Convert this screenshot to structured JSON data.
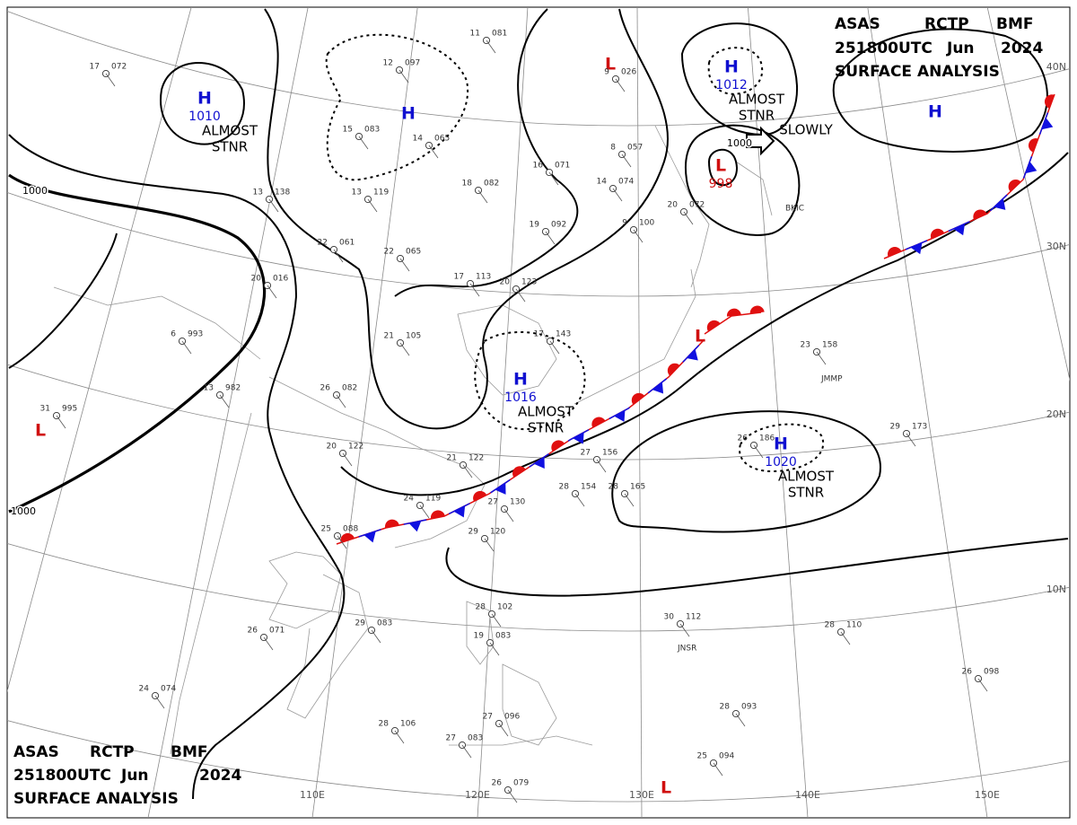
{
  "header": {
    "line1": [
      "ASAS",
      "RCTP",
      "BMF"
    ],
    "line2": [
      "251800UTC",
      "Jun",
      "2024"
    ],
    "line3": "SURFACE ANALYSIS"
  },
  "footer": {
    "line1": [
      "ASAS",
      "RCTP",
      "BMF"
    ],
    "line2": [
      "251800UTC",
      "Jun",
      "2024"
    ],
    "line3": "SURFACE ANALYSIS"
  },
  "longitudes": [
    "110E",
    "120E",
    "130E",
    "140E",
    "150E"
  ],
  "latitudes": [
    "40N",
    "30N",
    "20N",
    "10N"
  ],
  "isobar_labels": [
    "1000",
    "1000",
    "1000"
  ],
  "pressure_systems": [
    {
      "symbol": "H",
      "value": "1010",
      "note": [
        "ALMOST",
        "STNR"
      ]
    },
    {
      "symbol": "H"
    },
    {
      "symbol": "L"
    },
    {
      "symbol": "H",
      "value": "1012",
      "note": [
        "ALMOST",
        "STNR"
      ]
    },
    {
      "symbol": "L",
      "value": "998",
      "note": [
        "SLOWLY"
      ]
    },
    {
      "symbol": "H"
    },
    {
      "symbol": "H",
      "value": "1016",
      "note": [
        "ALMOST",
        "STNR"
      ]
    },
    {
      "symbol": "H",
      "value": "1020",
      "note": [
        "ALMOST",
        "STNR"
      ]
    },
    {
      "symbol": "L"
    },
    {
      "symbol": "L"
    },
    {
      "symbol": "L"
    }
  ],
  "station_ids": [
    "BKIC",
    "JMMP",
    "JNSR"
  ],
  "stations": [
    {
      "temp": "17",
      "pressure": "072"
    },
    {
      "temp": "12",
      "pressure": "097"
    },
    {
      "temp": "11",
      "pressure": "081"
    },
    {
      "temp": "9",
      "pressure": "026"
    },
    {
      "temp": "15",
      "pressure": "083"
    },
    {
      "temp": "14",
      "pressure": "065"
    },
    {
      "temp": "16",
      "pressure": "071"
    },
    {
      "temp": "8",
      "pressure": "057"
    },
    {
      "temp": "18",
      "pressure": "082"
    },
    {
      "temp": "14",
      "pressure": "074"
    },
    {
      "temp": "13",
      "pressure": "138"
    },
    {
      "temp": "13",
      "pressure": "119"
    },
    {
      "temp": "19",
      "pressure": "092"
    },
    {
      "temp": "9",
      "pressure": "100"
    },
    {
      "temp": "22",
      "pressure": "061"
    },
    {
      "temp": "22",
      "pressure": "065"
    },
    {
      "temp": "20",
      "pressure": "016"
    },
    {
      "temp": "17",
      "pressure": "113"
    },
    {
      "temp": "20",
      "pressure": "123"
    },
    {
      "temp": "6",
      "pressure": "993"
    },
    {
      "temp": "21",
      "pressure": "105"
    },
    {
      "temp": "17",
      "pressure": "143"
    },
    {
      "temp": "13",
      "pressure": "982"
    },
    {
      "temp": "26",
      "pressure": "082"
    },
    {
      "temp": "31",
      "pressure": "995"
    },
    {
      "temp": "20",
      "pressure": "122"
    },
    {
      "temp": "21",
      "pressure": "122"
    },
    {
      "temp": "27",
      "pressure": "156"
    },
    {
      "temp": "28",
      "pressure": "154"
    },
    {
      "temp": "28",
      "pressure": "165"
    },
    {
      "temp": "24",
      "pressure": "119"
    },
    {
      "temp": "27",
      "pressure": "130"
    },
    {
      "temp": "25",
      "pressure": "088"
    },
    {
      "temp": "29",
      "pressure": "120"
    },
    {
      "temp": "26",
      "pressure": "071"
    },
    {
      "temp": "29",
      "pressure": "083"
    },
    {
      "temp": "28",
      "pressure": "102"
    },
    {
      "temp": "19",
      "pressure": "083"
    },
    {
      "temp": "24",
      "pressure": "074"
    },
    {
      "temp": "28",
      "pressure": "106"
    },
    {
      "temp": "27",
      "pressure": "083"
    },
    {
      "temp": "27",
      "pressure": "096"
    },
    {
      "temp": "26",
      "pressure": "079"
    },
    {
      "temp": "30",
      "pressure": "112"
    },
    {
      "temp": "28",
      "pressure": "110"
    },
    {
      "temp": "26",
      "pressure": "098"
    },
    {
      "temp": "28",
      "pressure": "093"
    },
    {
      "temp": "25",
      "pressure": "094"
    },
    {
      "temp": "23",
      "pressure": "158"
    },
    {
      "temp": "29",
      "pressure": "173"
    },
    {
      "temp": "26",
      "pressure": "186"
    },
    {
      "temp": "20",
      "pressure": "072"
    }
  ]
}
